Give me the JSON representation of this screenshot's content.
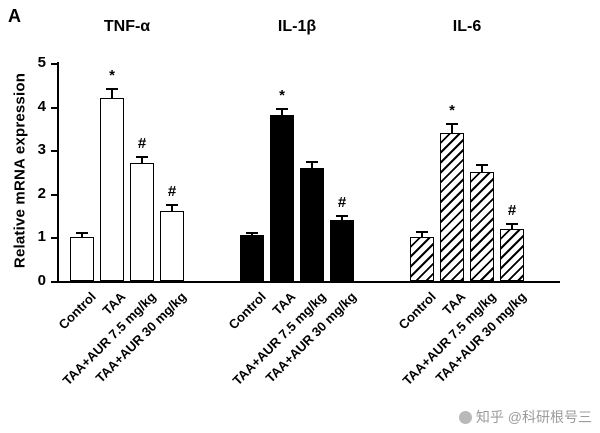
{
  "panel_label": "A",
  "watermark": {
    "text": "知乎 @科研根号三"
  },
  "colors": {
    "axis": "#000000",
    "bar_fill_dark": "#000000",
    "bar_outline": "#000000",
    "watermark_gray": "#9b9b9b"
  },
  "chart_data": {
    "type": "bar",
    "title": "",
    "xlabel": "",
    "ylabel": "Relative mRNA expression",
    "ylim": [
      0,
      5
    ],
    "yticks": [
      0,
      1,
      2,
      3,
      4,
      5
    ],
    "grid": false,
    "legend_position": "none",
    "categories": [
      "Control",
      "TAA",
      "TAA+AUR 7.5 mg/kg",
      "TAA+AUR 30 mg/kg"
    ],
    "series": [
      {
        "name": "TNF-α",
        "fill": "white",
        "values": [
          1.0,
          4.2,
          2.7,
          1.6
        ],
        "errors": [
          0.1,
          0.2,
          0.15,
          0.15
        ],
        "sig": [
          "",
          "*",
          "#",
          "#"
        ]
      },
      {
        "name": "IL-1β",
        "fill": "black",
        "values": [
          1.05,
          3.8,
          2.6,
          1.4
        ],
        "errors": [
          0.05,
          0.15,
          0.12,
          0.1
        ],
        "sig": [
          "",
          "*",
          "",
          "#"
        ]
      },
      {
        "name": "IL-6",
        "fill": "hatch",
        "values": [
          1.0,
          3.4,
          2.5,
          1.2
        ],
        "errors": [
          0.12,
          0.2,
          0.15,
          0.1
        ],
        "sig": [
          "",
          "*",
          "",
          "#"
        ]
      }
    ]
  }
}
